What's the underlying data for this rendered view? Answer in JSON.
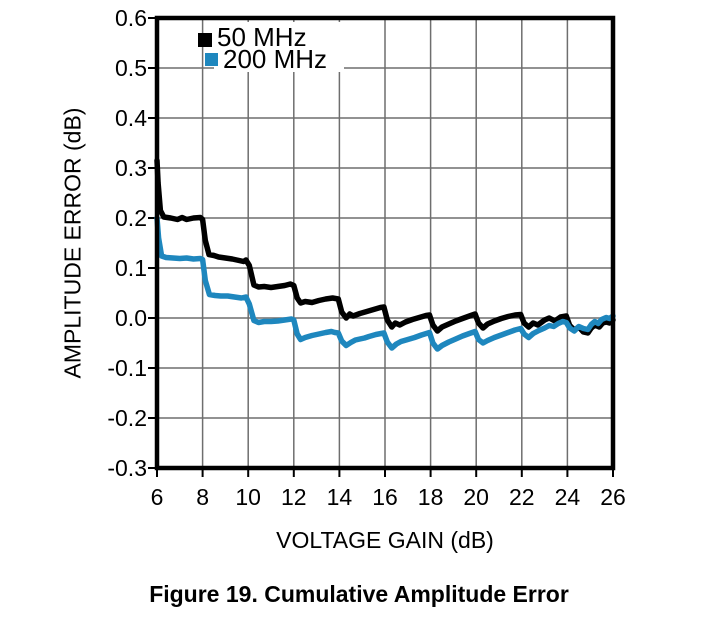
{
  "caption": "Figure 19. Cumulative Amplitude Error",
  "colors": {
    "background": "#ffffff",
    "grid": "#6e6e6e",
    "axis_frame": "#000000",
    "series_50mhz": "#000000",
    "series_200mhz": "#1e87be"
  },
  "chart_data": {
    "type": "line",
    "title": "Figure 19. Cumulative Amplitude Error",
    "xlabel": "VOLTAGE GAIN (dB)",
    "ylabel": "AMPLITUDE ERROR (dB)",
    "xlim": [
      6,
      26
    ],
    "ylim": [
      -0.3,
      0.6
    ],
    "xticks": [
      6,
      8,
      10,
      12,
      14,
      16,
      18,
      20,
      22,
      24,
      26
    ],
    "yticks": [
      "0.6",
      "0.5",
      "0.4",
      "0.3",
      "0.2",
      "0.1",
      "0.0",
      "-0.1",
      "-0.2",
      "-0.3"
    ],
    "grid": true,
    "legend_position": "top-left-inside",
    "series": [
      {
        "name": "50 MHz",
        "color": "#000000",
        "points": [
          [
            6.0,
            0.315
          ],
          [
            6.05,
            0.27
          ],
          [
            6.15,
            0.215
          ],
          [
            6.3,
            0.202
          ],
          [
            6.6,
            0.2
          ],
          [
            6.9,
            0.197
          ],
          [
            7.1,
            0.201
          ],
          [
            7.3,
            0.197
          ],
          [
            7.6,
            0.2
          ],
          [
            7.9,
            0.201
          ],
          [
            8.0,
            0.197
          ],
          [
            8.12,
            0.155
          ],
          [
            8.28,
            0.127
          ],
          [
            8.5,
            0.125
          ],
          [
            8.7,
            0.122
          ],
          [
            9.0,
            0.12
          ],
          [
            9.3,
            0.118
          ],
          [
            9.6,
            0.115
          ],
          [
            9.8,
            0.113
          ],
          [
            9.9,
            0.116
          ],
          [
            10.05,
            0.105
          ],
          [
            10.25,
            0.066
          ],
          [
            10.45,
            0.062
          ],
          [
            10.7,
            0.063
          ],
          [
            11.0,
            0.061
          ],
          [
            11.3,
            0.063
          ],
          [
            11.6,
            0.065
          ],
          [
            11.85,
            0.068
          ],
          [
            12.0,
            0.065
          ],
          [
            12.15,
            0.04
          ],
          [
            12.3,
            0.03
          ],
          [
            12.5,
            0.033
          ],
          [
            12.8,
            0.031
          ],
          [
            13.1,
            0.035
          ],
          [
            13.4,
            0.038
          ],
          [
            13.7,
            0.04
          ],
          [
            13.95,
            0.038
          ],
          [
            14.1,
            0.012
          ],
          [
            14.3,
            0.0
          ],
          [
            14.45,
            0.008
          ],
          [
            14.6,
            0.004
          ],
          [
            14.9,
            0.009
          ],
          [
            15.2,
            0.013
          ],
          [
            15.5,
            0.017
          ],
          [
            15.8,
            0.021
          ],
          [
            15.95,
            0.022
          ],
          [
            16.1,
            -0.004
          ],
          [
            16.3,
            -0.018
          ],
          [
            16.45,
            -0.01
          ],
          [
            16.65,
            -0.014
          ],
          [
            16.9,
            -0.008
          ],
          [
            17.2,
            -0.003
          ],
          [
            17.5,
            0.001
          ],
          [
            17.8,
            0.005
          ],
          [
            17.95,
            0.006
          ],
          [
            18.1,
            -0.014
          ],
          [
            18.3,
            -0.026
          ],
          [
            18.5,
            -0.018
          ],
          [
            18.8,
            -0.012
          ],
          [
            19.1,
            -0.006
          ],
          [
            19.4,
            -0.001
          ],
          [
            19.7,
            0.004
          ],
          [
            19.95,
            0.008
          ],
          [
            20.1,
            -0.01
          ],
          [
            20.3,
            -0.02
          ],
          [
            20.5,
            -0.012
          ],
          [
            20.8,
            -0.006
          ],
          [
            21.1,
            -0.001
          ],
          [
            21.4,
            0.003
          ],
          [
            21.7,
            0.006
          ],
          [
            21.95,
            0.007
          ],
          [
            22.1,
            -0.01
          ],
          [
            22.3,
            -0.018
          ],
          [
            22.5,
            -0.01
          ],
          [
            22.7,
            -0.014
          ],
          [
            23.0,
            -0.004
          ],
          [
            23.2,
            0.0
          ],
          [
            23.45,
            -0.006
          ],
          [
            23.7,
            0.002
          ],
          [
            23.95,
            0.004
          ],
          [
            24.1,
            -0.015
          ],
          [
            24.3,
            -0.024
          ],
          [
            24.5,
            -0.018
          ],
          [
            24.7,
            -0.028
          ],
          [
            24.9,
            -0.03
          ],
          [
            25.05,
            -0.02
          ],
          [
            25.2,
            -0.014
          ],
          [
            25.4,
            -0.018
          ],
          [
            25.55,
            -0.01
          ],
          [
            25.7,
            -0.008
          ],
          [
            25.85,
            -0.01
          ],
          [
            26.0,
            -0.004
          ]
        ]
      },
      {
        "name": "200 MHz",
        "color": "#1e87be",
        "points": [
          [
            6.0,
            0.2
          ],
          [
            6.07,
            0.16
          ],
          [
            6.2,
            0.124
          ],
          [
            6.4,
            0.121
          ],
          [
            6.7,
            0.12
          ],
          [
            7.0,
            0.119
          ],
          [
            7.3,
            0.12
          ],
          [
            7.6,
            0.118
          ],
          [
            7.9,
            0.119
          ],
          [
            8.0,
            0.117
          ],
          [
            8.12,
            0.075
          ],
          [
            8.3,
            0.047
          ],
          [
            8.55,
            0.045
          ],
          [
            8.8,
            0.044
          ],
          [
            9.1,
            0.044
          ],
          [
            9.4,
            0.042
          ],
          [
            9.7,
            0.04
          ],
          [
            9.9,
            0.042
          ],
          [
            10.05,
            0.028
          ],
          [
            10.25,
            -0.005
          ],
          [
            10.45,
            -0.009
          ],
          [
            10.7,
            -0.007
          ],
          [
            11.0,
            -0.007
          ],
          [
            11.3,
            -0.006
          ],
          [
            11.6,
            -0.004
          ],
          [
            11.9,
            -0.002
          ],
          [
            12.0,
            -0.004
          ],
          [
            12.15,
            -0.032
          ],
          [
            12.3,
            -0.043
          ],
          [
            12.5,
            -0.039
          ],
          [
            12.8,
            -0.035
          ],
          [
            13.1,
            -0.032
          ],
          [
            13.4,
            -0.029
          ],
          [
            13.65,
            -0.027
          ],
          [
            13.8,
            -0.029
          ],
          [
            13.95,
            -0.03
          ],
          [
            14.1,
            -0.046
          ],
          [
            14.3,
            -0.055
          ],
          [
            14.5,
            -0.049
          ],
          [
            14.7,
            -0.044
          ],
          [
            14.9,
            -0.042
          ],
          [
            15.1,
            -0.04
          ],
          [
            15.3,
            -0.037
          ],
          [
            15.6,
            -0.033
          ],
          [
            15.95,
            -0.03
          ],
          [
            16.1,
            -0.048
          ],
          [
            16.3,
            -0.06
          ],
          [
            16.5,
            -0.052
          ],
          [
            16.7,
            -0.047
          ],
          [
            17.0,
            -0.043
          ],
          [
            17.3,
            -0.039
          ],
          [
            17.6,
            -0.034
          ],
          [
            17.95,
            -0.029
          ],
          [
            18.1,
            -0.05
          ],
          [
            18.3,
            -0.062
          ],
          [
            18.5,
            -0.055
          ],
          [
            18.8,
            -0.048
          ],
          [
            19.1,
            -0.042
          ],
          [
            19.4,
            -0.036
          ],
          [
            19.7,
            -0.031
          ],
          [
            19.95,
            -0.027
          ],
          [
            20.1,
            -0.043
          ],
          [
            20.3,
            -0.05
          ],
          [
            20.5,
            -0.045
          ],
          [
            20.8,
            -0.039
          ],
          [
            21.1,
            -0.034
          ],
          [
            21.4,
            -0.029
          ],
          [
            21.7,
            -0.024
          ],
          [
            21.95,
            -0.021
          ],
          [
            22.1,
            -0.032
          ],
          [
            22.3,
            -0.039
          ],
          [
            22.5,
            -0.031
          ],
          [
            22.75,
            -0.025
          ],
          [
            23.0,
            -0.02
          ],
          [
            23.2,
            -0.015
          ],
          [
            23.4,
            -0.017
          ],
          [
            23.6,
            -0.011
          ],
          [
            23.8,
            -0.007
          ],
          [
            23.95,
            -0.009
          ],
          [
            24.1,
            -0.02
          ],
          [
            24.3,
            -0.026
          ],
          [
            24.5,
            -0.017
          ],
          [
            24.7,
            -0.021
          ],
          [
            24.9,
            -0.023
          ],
          [
            25.05,
            -0.013
          ],
          [
            25.2,
            -0.007
          ],
          [
            25.35,
            -0.011
          ],
          [
            25.5,
            -0.003
          ],
          [
            25.7,
            0.001
          ],
          [
            25.85,
            -0.001
          ],
          [
            26.0,
            0.004
          ]
        ]
      }
    ]
  }
}
